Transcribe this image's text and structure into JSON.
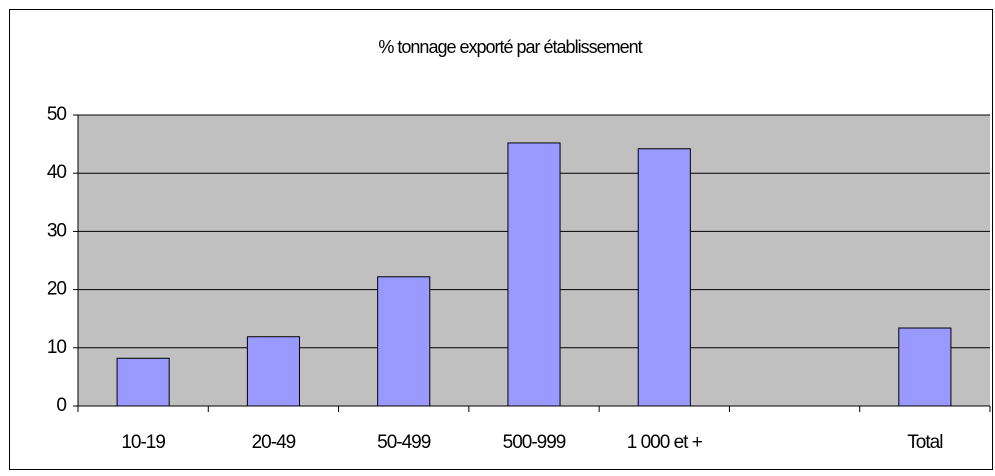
{
  "chart_data": {
    "type": "bar",
    "title": "% tonnage exporté par établissement",
    "categories": [
      "10-19",
      "20-49",
      "50-499",
      "500-999",
      "1 000 et +",
      null,
      "Total"
    ],
    "values": [
      8.2,
      11.9,
      22.2,
      45.2,
      44.2,
      null,
      13.4
    ],
    "color": "#9999ff",
    "ylim": [
      0,
      50
    ],
    "yticks": [
      0,
      10,
      20,
      30,
      40,
      50
    ],
    "grid": true
  }
}
